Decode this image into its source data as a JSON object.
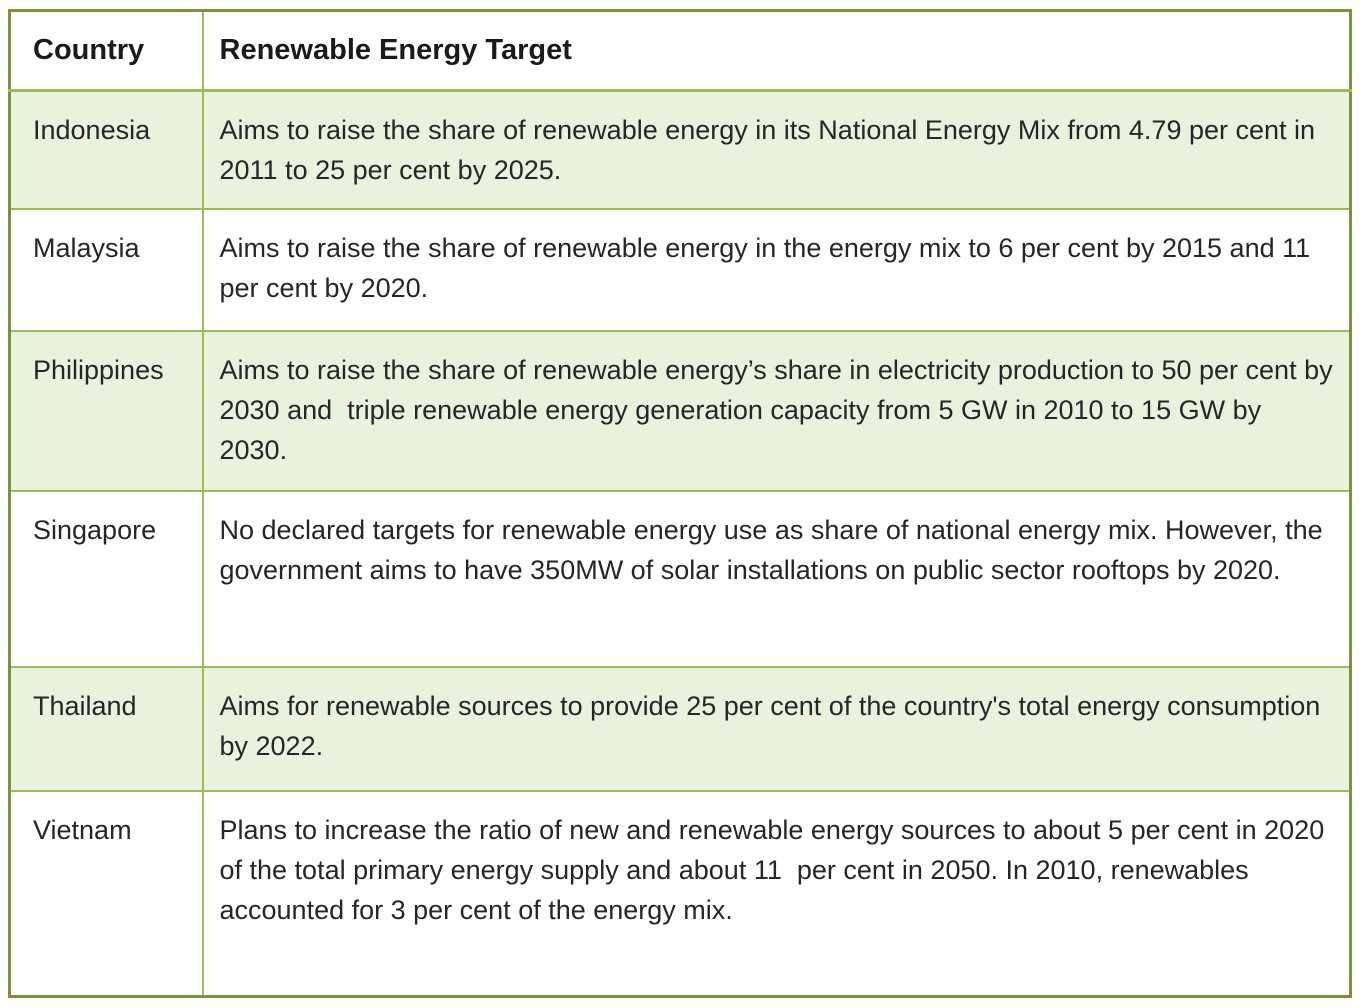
{
  "table": {
    "columns": [
      "Country",
      "Renewable Energy Target"
    ],
    "rows": [
      {
        "country": "Indonesia",
        "target": "Aims to raise the share of renewable energy in its National Energy Mix from 4.79 per cent in 2011 to 25 per cent by 2025."
      },
      {
        "country": "Malaysia",
        "target": "Aims to raise the share of renewable energy in the energy mix to 6 per cent by 2015 and 11 per cent by 2020."
      },
      {
        "country": "Philippines",
        "target": "Aims to raise the share of renewable energy’s share in electricity production to 50 per cent by 2030 and  triple renewable energy generation capacity from 5 GW in 2010 to 15 GW by 2030."
      },
      {
        "country": "Singapore",
        "target": "No declared targets for renewable energy use as share of national energy mix. However, the government aims to have 350MW of solar installations on public sector rooftops by 2020."
      },
      {
        "country": "Thailand",
        "target": "Aims for renewable sources to provide 25 per cent of the country's total energy consumption by 2022."
      },
      {
        "country": "Vietnam",
        "target": "Plans to increase the ratio of new and renewable energy sources to about 5 per cent in 2020 of the total primary energy supply and about 11  per cent in 2050. In 2010, renewables accounted for 3 per cent of the energy mix."
      }
    ],
    "colors": {
      "border_inner": "#9bbb59",
      "border_outer": "#77933c",
      "row_shade": "#eaf1dd",
      "row_plain": "#ffffff",
      "text": "#262626"
    }
  }
}
